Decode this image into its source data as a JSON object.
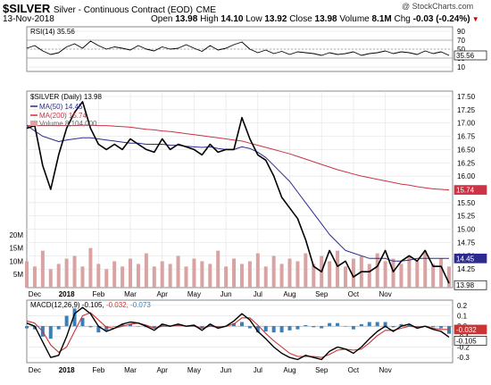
{
  "header": {
    "symbol": "$SILVER",
    "description": "Silver - Continuous Contract (EOD)",
    "exchange": "CME",
    "date": "13-Nov-2018",
    "open_label": "Open",
    "open": "13.98",
    "high_label": "High",
    "high": "14.10",
    "low_label": "Low",
    "low": "13.92",
    "close_label": "Close",
    "close": "13.98",
    "volume_label": "Volume",
    "volume": "8.1M",
    "chg_label": "Chg",
    "chg": "-0.03 (-0.24%)",
    "watermark": "@ StockCharts.com"
  },
  "colors": {
    "price": "#000000",
    "ma50": "#2b2b8f",
    "ma200": "#cc3344",
    "volume": "#d9a3a3",
    "rsi": "#000000",
    "macd": "#000000",
    "signal": "#cc3333",
    "hist": "#3a7fb8",
    "grid": "#e6e6e6",
    "panel_bg": "#ffffff"
  },
  "chart_data": [
    {
      "type": "line",
      "panel": "rsi",
      "legend": "RSI(14) 35.56",
      "yticks": [
        10,
        30,
        50,
        70,
        90
      ],
      "ylim": [
        0,
        100
      ],
      "last_value_label": "35.56",
      "x": [
        0,
        5,
        10,
        15,
        20,
        25,
        30,
        35,
        40,
        45,
        50,
        55,
        60,
        65,
        70,
        75,
        80,
        85,
        90,
        95,
        100,
        105,
        110,
        115,
        120,
        125,
        130,
        135,
        140,
        145,
        150,
        155,
        160,
        165,
        170,
        175,
        180,
        185,
        190,
        195,
        200,
        205,
        210,
        215,
        220,
        225,
        230,
        235,
        240,
        245,
        250,
        255,
        260,
        265
      ],
      "values": [
        52,
        58,
        46,
        38,
        42,
        55,
        62,
        52,
        68,
        58,
        50,
        55,
        52,
        48,
        58,
        50,
        46,
        55,
        50,
        52,
        60,
        52,
        45,
        58,
        48,
        52,
        60,
        66,
        50,
        42,
        48,
        40,
        45,
        38,
        44,
        42,
        40,
        36,
        42,
        38,
        40,
        44,
        36,
        40,
        42,
        46,
        40,
        44,
        42,
        38,
        46,
        40,
        44,
        36
      ]
    },
    {
      "type": "line",
      "panel": "price",
      "legend": [
        "$SILVER (Daily) 13.98",
        "MA(50) 14.45",
        "MA(200) 15.74",
        "Volume 8,104,000"
      ],
      "yticks": [
        14.25,
        14.5,
        14.75,
        15,
        15.25,
        15.5,
        15.75,
        16,
        16.25,
        16.5,
        16.75,
        17,
        17.25,
        17.5
      ],
      "ylim": [
        13.9,
        17.6
      ],
      "x_tick_labels": [
        "Dec",
        "2018",
        "Feb",
        "Mar",
        "Apr",
        "May",
        "Jun",
        "Jul",
        "Aug",
        "Sep",
        "Oct",
        "Nov"
      ],
      "x_ticks": [
        5,
        25,
        45,
        65,
        85,
        105,
        125,
        145,
        165,
        185,
        205,
        225
      ],
      "markers": [
        "15.74",
        "14.45",
        "13.98"
      ],
      "x": [
        0,
        5,
        10,
        15,
        20,
        25,
        30,
        35,
        40,
        45,
        50,
        55,
        60,
        65,
        70,
        75,
        80,
        85,
        90,
        95,
        100,
        105,
        110,
        115,
        120,
        125,
        130,
        135,
        140,
        145,
        150,
        155,
        160,
        165,
        170,
        175,
        180,
        185,
        190,
        195,
        200,
        205,
        210,
        215,
        220,
        225,
        230,
        235,
        240,
        245,
        250,
        255,
        260,
        265
      ],
      "series": [
        {
          "name": "$SILVER (Daily)",
          "values": [
            16.9,
            16.95,
            16.2,
            15.75,
            16.4,
            16.9,
            17.2,
            17.4,
            16.9,
            16.6,
            16.5,
            16.6,
            16.5,
            16.7,
            16.6,
            16.5,
            16.45,
            16.7,
            16.5,
            16.6,
            16.55,
            16.5,
            16.4,
            16.6,
            16.45,
            16.5,
            16.5,
            17.1,
            16.7,
            16.4,
            16.3,
            16.0,
            15.6,
            15.4,
            15.2,
            14.8,
            14.3,
            14.2,
            14.6,
            14.3,
            14.4,
            14.1,
            14.2,
            14.2,
            14.3,
            14.6,
            14.2,
            14.4,
            14.5,
            14.4,
            14.6,
            14.3,
            14.3,
            13.98
          ]
        },
        {
          "name": "MA(50)",
          "values": [
            16.95,
            16.85,
            16.75,
            16.7,
            16.65,
            16.68,
            16.7,
            16.72,
            16.72,
            16.7,
            16.68,
            16.66,
            16.64,
            16.62,
            16.62,
            16.6,
            16.6,
            16.6,
            16.58,
            16.58,
            16.56,
            16.55,
            16.54,
            16.55,
            16.52,
            16.5,
            16.5,
            16.55,
            16.52,
            16.45,
            16.35,
            16.2,
            16.05,
            15.9,
            15.7,
            15.5,
            15.3,
            15.1,
            14.9,
            14.75,
            14.6,
            14.55,
            14.5,
            14.45,
            14.45,
            14.45,
            14.4,
            14.4,
            14.42,
            14.45,
            14.45,
            14.45,
            14.45,
            14.45
          ]
        },
        {
          "name": "MA(200)",
          "values": [
            16.95,
            16.95,
            16.95,
            16.95,
            16.95,
            16.95,
            16.95,
            16.96,
            16.96,
            16.95,
            16.95,
            16.94,
            16.93,
            16.92,
            16.9,
            16.88,
            16.87,
            16.85,
            16.84,
            16.82,
            16.8,
            16.78,
            16.76,
            16.74,
            16.72,
            16.7,
            16.68,
            16.66,
            16.62,
            16.58,
            16.54,
            16.5,
            16.46,
            16.42,
            16.37,
            16.32,
            16.27,
            16.22,
            16.17,
            16.12,
            16.08,
            16.04,
            16.0,
            15.97,
            15.94,
            15.91,
            15.88,
            15.85,
            15.83,
            15.8,
            15.78,
            15.76,
            15.75,
            15.74
          ]
        }
      ]
    },
    {
      "type": "bar",
      "panel": "volume",
      "yticks": [
        5,
        10,
        15,
        20
      ],
      "ytick_labels": [
        "5M",
        "10M",
        "15M",
        "20M"
      ],
      "ylim": [
        0,
        22
      ],
      "x": [
        0,
        5,
        10,
        15,
        20,
        25,
        30,
        35,
        40,
        45,
        50,
        55,
        60,
        65,
        70,
        75,
        80,
        85,
        90,
        95,
        100,
        105,
        110,
        115,
        120,
        125,
        130,
        135,
        140,
        145,
        150,
        155,
        160,
        165,
        170,
        175,
        180,
        185,
        190,
        195,
        200,
        205,
        210,
        215,
        220,
        225,
        230,
        235,
        240,
        245,
        250,
        255,
        260,
        265
      ],
      "values": [
        10,
        8,
        14,
        7,
        9,
        11,
        12,
        8,
        15,
        9,
        7,
        10,
        8,
        11,
        9,
        13,
        8,
        10,
        9,
        12,
        8,
        11,
        10,
        9,
        14,
        8,
        11,
        9,
        10,
        13,
        8,
        12,
        9,
        11,
        10,
        13,
        9,
        12,
        10,
        14,
        8,
        11,
        12,
        9,
        13,
        10,
        11,
        9,
        12,
        10,
        14,
        9,
        11,
        8
      ]
    },
    {
      "type": "line",
      "panel": "macd",
      "legend": [
        "MACD(12,26,9)",
        "-0.105",
        "-0.032",
        "-0.073"
      ],
      "yticks": [
        0.2,
        0.1,
        0.0,
        -0.1,
        -0.2,
        -0.3
      ],
      "ytick_labels": [
        "0.2",
        "0.1",
        "0.0",
        "-0.1",
        "-0.2",
        "-0.3"
      ],
      "ylim": [
        -0.35,
        0.25
      ],
      "markers": [
        "-0.032",
        "-0.105"
      ],
      "x": [
        0,
        5,
        10,
        15,
        20,
        25,
        30,
        35,
        40,
        45,
        50,
        55,
        60,
        65,
        70,
        75,
        80,
        85,
        90,
        95,
        100,
        105,
        110,
        115,
        120,
        125,
        130,
        135,
        140,
        145,
        150,
        155,
        160,
        165,
        170,
        175,
        180,
        185,
        190,
        195,
        200,
        205,
        210,
        215,
        220,
        225,
        230,
        235,
        240,
        245,
        250,
        255,
        260,
        265
      ],
      "series": [
        {
          "name": "MACD(12,26,9)",
          "values": [
            0.03,
            0.0,
            -0.15,
            -0.3,
            -0.28,
            -0.1,
            0.12,
            0.18,
            0.12,
            0.0,
            -0.05,
            -0.02,
            0.02,
            0.04,
            0.03,
            0.0,
            -0.04,
            0.02,
            0.0,
            0.02,
            0.0,
            0.01,
            -0.04,
            0.02,
            -0.02,
            0.0,
            0.05,
            0.12,
            0.06,
            -0.05,
            -0.12,
            -0.2,
            -0.26,
            -0.3,
            -0.32,
            -0.28,
            -0.3,
            -0.32,
            -0.24,
            -0.2,
            -0.22,
            -0.26,
            -0.2,
            -0.12,
            -0.05,
            0.0,
            -0.05,
            0.0,
            0.02,
            -0.02,
            0.0,
            -0.03,
            -0.05,
            -0.105
          ]
        },
        {
          "name": "signal",
          "values": [
            0.05,
            0.03,
            -0.05,
            -0.18,
            -0.25,
            -0.2,
            -0.05,
            0.1,
            0.13,
            0.06,
            -0.01,
            -0.02,
            0.0,
            0.02,
            0.03,
            0.01,
            -0.02,
            0.0,
            0.0,
            0.01,
            0.0,
            0.0,
            -0.02,
            0.0,
            -0.01,
            0.0,
            0.02,
            0.08,
            0.08,
            0.01,
            -0.07,
            -0.14,
            -0.2,
            -0.26,
            -0.29,
            -0.29,
            -0.29,
            -0.3,
            -0.27,
            -0.23,
            -0.22,
            -0.23,
            -0.22,
            -0.16,
            -0.09,
            -0.04,
            -0.04,
            -0.02,
            0.0,
            -0.01,
            0.0,
            -0.02,
            -0.03,
            -0.032
          ]
        },
        {
          "name": "histogram",
          "values": [
            -0.02,
            -0.03,
            -0.1,
            -0.12,
            -0.03,
            0.1,
            0.17,
            0.08,
            -0.01,
            -0.06,
            -0.04,
            0.0,
            0.02,
            0.02,
            0.0,
            -0.01,
            -0.02,
            0.02,
            0.0,
            0.01,
            0.0,
            0.01,
            -0.02,
            0.02,
            -0.01,
            0.0,
            0.03,
            0.04,
            -0.02,
            -0.06,
            -0.05,
            -0.06,
            -0.06,
            -0.04,
            -0.03,
            0.01,
            -0.01,
            -0.02,
            0.03,
            0.03,
            0.0,
            -0.03,
            0.02,
            0.04,
            0.04,
            0.04,
            -0.01,
            0.02,
            0.02,
            -0.01,
            0.0,
            -0.01,
            -0.02,
            -0.073
          ]
        }
      ]
    }
  ]
}
